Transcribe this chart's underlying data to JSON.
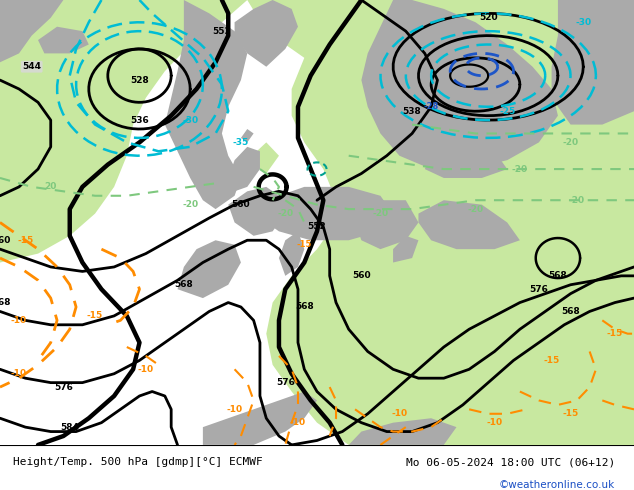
{
  "title_left": "Height/Temp. 500 hPa [gdmp][°C] ECMWF",
  "title_right": "Mo 06-05-2024 18:00 UTC (06+12)",
  "watermark": "©weatheronline.co.uk",
  "bg_color": "#d8d8d8",
  "green_color": "#c8e8a0",
  "white_color": "#ffffff",
  "fig_width": 6.34,
  "fig_height": 4.9,
  "dpi": 100,
  "contour_lw": 2.0,
  "thick_lw": 3.2,
  "orange_color": "#FF8C00",
  "cyan_color": "#00bcd4",
  "blue_color": "#1e56c8",
  "teal_color": "#7ec87e"
}
